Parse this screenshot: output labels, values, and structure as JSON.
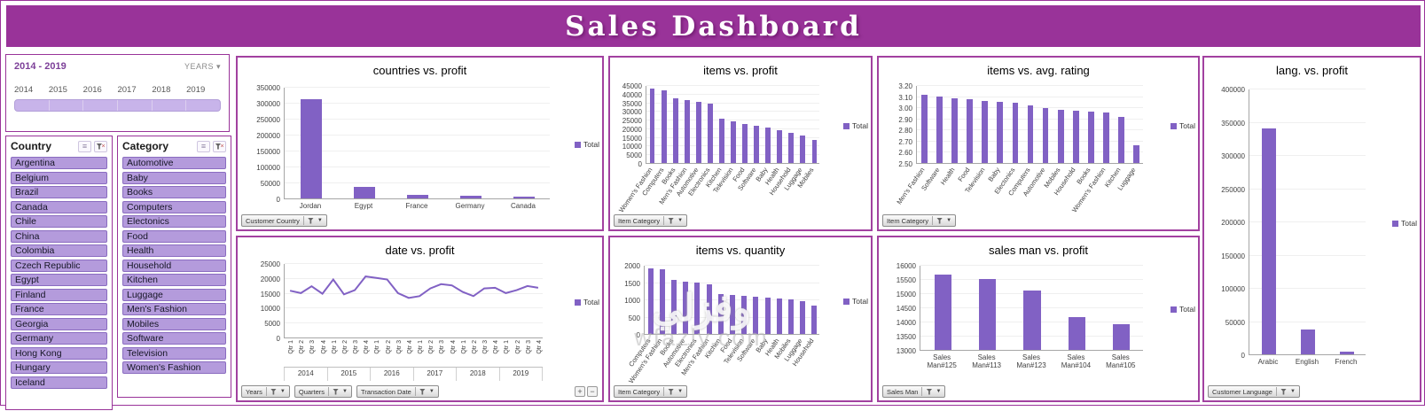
{
  "header": {
    "title": "Sales Dashboard"
  },
  "colors": {
    "accent": "#993399",
    "bar": "#8161c4",
    "pill": "#b49bdc",
    "tlbar": "#c8b4ea"
  },
  "watermark": {
    "line1": "وفزلي",
    "line2": "wfazly.com"
  },
  "timeline": {
    "range_label": "2014  - 2019",
    "field_label": "YEARS",
    "caret": "▾",
    "years": [
      "2014",
      "2015",
      "2016",
      "2017",
      "2018",
      "2019"
    ]
  },
  "slicers": [
    {
      "id": "country",
      "title": "Country",
      "items": [
        "Argentina",
        "Belgium",
        "Brazil",
        "Canada",
        "Chile",
        "China",
        "Colombia",
        "Czech Republic",
        "Egypt",
        "Finland",
        "France",
        "Georgia",
        "Germany",
        "Hong Kong",
        "Hungary",
        "Iceland"
      ]
    },
    {
      "id": "category",
      "title": "Category",
      "items": [
        "Automotive",
        "Baby",
        "Books",
        "Computers",
        "Electonics",
        "Food",
        "Health",
        "Household",
        "Kitchen",
        "Luggage",
        "Men's Fashion",
        "Mobiles",
        "Software",
        "Television",
        "Women's Fashion"
      ]
    }
  ],
  "chart_data": [
    {
      "id": "countries-profit",
      "type": "bar",
      "title": "countries vs. profit",
      "categories": [
        "Jordan",
        "Egypt",
        "France",
        "Germany",
        "Canada"
      ],
      "values": [
        310000,
        36000,
        12000,
        9000,
        6000
      ],
      "ytick_labels": [
        "0",
        "50000",
        "100000",
        "150000",
        "200000",
        "250000",
        "300000",
        "350000"
      ],
      "ylim": [
        0,
        350000
      ],
      "legend": "Total",
      "filters": [
        "Customer Country"
      ]
    },
    {
      "id": "items-profit",
      "type": "bar",
      "title": "items vs. profit",
      "categories": [
        "Women's Fashion",
        "Computers",
        "Books",
        "Men's Fashion",
        "Automotive",
        "Electronics",
        "Kitchen",
        "Television",
        "Food",
        "Software",
        "Baby",
        "Health",
        "Household",
        "Luggage",
        "Mobiles"
      ],
      "values": [
        43000,
        42000,
        37500,
        36500,
        35500,
        34500,
        25500,
        24000,
        22500,
        21500,
        20500,
        19000,
        17500,
        16000,
        13500
      ],
      "ytick_labels": [
        "0",
        "5000",
        "10000",
        "15000",
        "20000",
        "25000",
        "30000",
        "35000",
        "40000",
        "45000"
      ],
      "ylim": [
        0,
        45000
      ],
      "legend": "Total",
      "filters": [
        "Item Category"
      ]
    },
    {
      "id": "items-rating",
      "type": "bar",
      "title": "items vs. avg. rating",
      "categories": [
        "Men's Fashion",
        "Software",
        "Health",
        "Food",
        "Television",
        "Baby",
        "Electonics",
        "Computers",
        "Automotive",
        "Mobiles",
        "Household",
        "Books",
        "Women's Fashion",
        "Kitchen",
        "Luggage"
      ],
      "values": [
        3.11,
        3.1,
        3.08,
        3.07,
        3.06,
        3.05,
        3.04,
        3.02,
        2.99,
        2.98,
        2.97,
        2.96,
        2.95,
        2.91,
        2.66
      ],
      "ytick_labels": [
        "2.50",
        "2.60",
        "2.70",
        "2.80",
        "2.90",
        "3.00",
        "3.10",
        "3.20"
      ],
      "ylim": [
        2.5,
        3.2
      ],
      "legend": "Total",
      "filters": [
        "Item Category"
      ]
    },
    {
      "id": "lang-profit",
      "type": "bar",
      "title": "lang. vs. profit",
      "categories": [
        "Arabic",
        "English",
        "French"
      ],
      "values": [
        340000,
        38000,
        4000
      ],
      "ytick_labels": [
        "0",
        "50000",
        "100000",
        "150000",
        "200000",
        "250000",
        "300000",
        "350000",
        "400000"
      ],
      "ylim": [
        0,
        400000
      ],
      "legend": "Total",
      "filters": [
        "Customer Language"
      ]
    },
    {
      "id": "date-profit",
      "type": "line",
      "title": "date vs. profit",
      "years": [
        "2014",
        "2015",
        "2016",
        "2017",
        "2018",
        "2019"
      ],
      "quarters": [
        "Qtr 1",
        "Qtr 2",
        "Qtr 3",
        "Qtr 4"
      ],
      "values": [
        16000,
        15200,
        17500,
        15000,
        19800,
        14800,
        16200,
        20800,
        20300,
        19800,
        15200,
        13600,
        14200,
        16800,
        18200,
        17800,
        15600,
        14200,
        16800,
        17000,
        15200,
        16200,
        17600,
        17000
      ],
      "ytick_labels": [
        "0",
        "5000",
        "10000",
        "15000",
        "20000",
        "25000"
      ],
      "ylim": [
        0,
        25000
      ],
      "legend": "Total",
      "filters": [
        "Years",
        "Quarters",
        "Transaction Date"
      ],
      "zoom_controls": [
        "+",
        "−"
      ]
    },
    {
      "id": "items-quantity",
      "type": "bar",
      "title": "items vs. quantity",
      "categories": [
        "Computers",
        "Women's Fashion",
        "Books",
        "Automotive",
        "Electronics",
        "Men's Fashion",
        "Kitchen",
        "Food",
        "Television",
        "Software",
        "Baby",
        "Health",
        "Mobiles",
        "Luggage",
        "Household"
      ],
      "values": [
        1900,
        1870,
        1560,
        1520,
        1480,
        1440,
        1160,
        1130,
        1100,
        1080,
        1060,
        1030,
        990,
        940,
        830
      ],
      "ytick_labels": [
        "0",
        "500",
        "1000",
        "1500",
        "2000"
      ],
      "ylim": [
        0,
        2000
      ],
      "legend": "Total",
      "filters": [
        "Item Category"
      ]
    },
    {
      "id": "salesman-profit",
      "type": "bar",
      "title": "sales man vs. profit",
      "categories": [
        "Sales Man#125",
        "Sales Man#113",
        "Sales Man#123",
        "Sales Man#104",
        "Sales Man#105"
      ],
      "values": [
        15650,
        15500,
        15100,
        14150,
        13900
      ],
      "ytick_labels": [
        "13000",
        "13500",
        "14000",
        "14500",
        "15000",
        "15500",
        "16000"
      ],
      "ylim": [
        13000,
        16000
      ],
      "legend": "Total",
      "filters": [
        "Sales Man"
      ]
    }
  ]
}
